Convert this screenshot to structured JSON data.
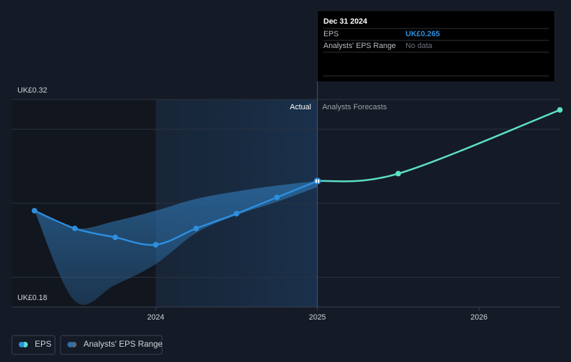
{
  "chart_data": {
    "type": "line",
    "xlim": [
      2023.11,
      2026.5
    ],
    "ylim": [
      0.18,
      0.32
    ],
    "xticks": [
      2024,
      2025,
      2026
    ],
    "yticks": [
      {
        "value": 0.18,
        "label": "UK£0.18"
      },
      {
        "value": 0.32,
        "label": "UK£0.32"
      }
    ],
    "gridlines": [
      0.2,
      0.25,
      0.3
    ],
    "series": [
      {
        "name": "EPS",
        "color": "#2d8fe0",
        "x": [
          2023.25,
          2023.5,
          2023.75,
          2024.0,
          2024.25,
          2024.5,
          2024.75,
          2025.0
        ],
        "values": [
          0.245,
          0.233,
          0.227,
          0.222,
          0.233,
          0.243,
          0.254,
          0.265
        ]
      },
      {
        "color": "#5ce0c8",
        "x": [
          2025.0,
          2025.5,
          2026.5
        ],
        "values": [
          0.265,
          0.27,
          0.313
        ]
      }
    ],
    "range": {
      "name": "Analysts' EPS Range",
      "color": "#2d6fa8",
      "x": [
        2023.25,
        2023.5,
        2023.75,
        2024.0,
        2024.25,
        2024.5,
        2024.75,
        2025.0
      ],
      "high": [
        0.245,
        0.233,
        0.238,
        0.245,
        0.253,
        0.258,
        0.262,
        0.265
      ],
      "low": [
        0.245,
        0.184,
        0.195,
        0.209,
        0.23,
        0.242,
        0.251,
        0.261
      ]
    },
    "region_labels": {
      "actual": "Actual",
      "forecast": "Analysts Forecasts"
    },
    "tooltip": {
      "date": "Dec 31 2024",
      "rows": [
        {
          "label": "EPS",
          "value": "UK£0.265"
        },
        {
          "label": "Analysts' EPS Range",
          "value": "No data"
        }
      ]
    }
  }
}
